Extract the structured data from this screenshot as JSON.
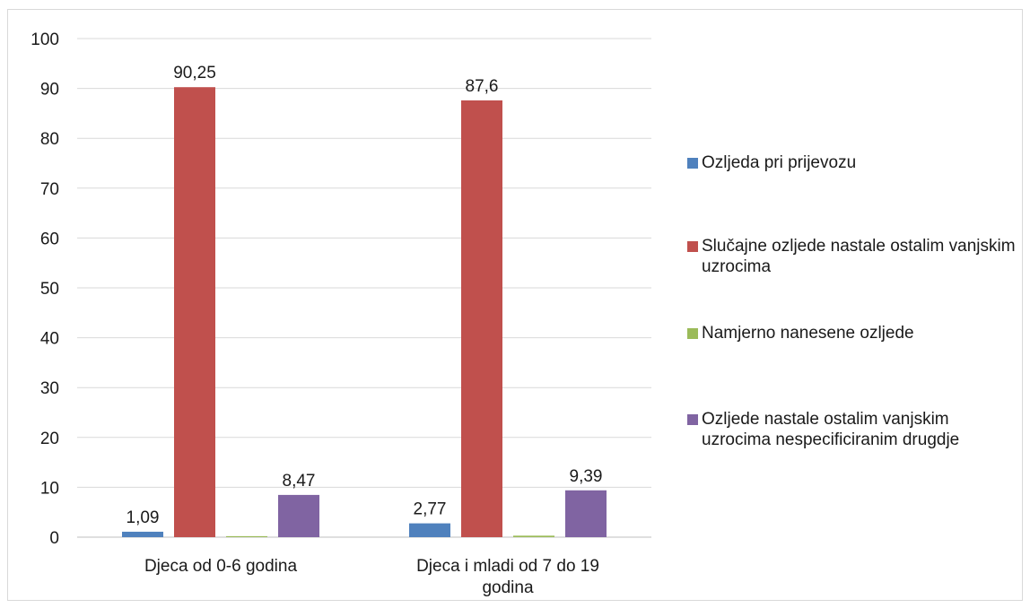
{
  "chart_data": {
    "type": "bar",
    "categories": [
      "Djeca od 0-6 godina",
      "Djeca i mladi od 7 do 19 godina"
    ],
    "series": [
      {
        "name": "Ozljeda pri prijevozu",
        "color": "#4f81bd",
        "values": [
          1.09,
          2.77
        ],
        "labels": [
          "1,09",
          "2,77"
        ]
      },
      {
        "name": "Slučajne ozljede nastale ostalim vanjskim uzrocima",
        "color": "#c0504d",
        "values": [
          90.25,
          87.6
        ],
        "labels": [
          "90,25",
          "87,6"
        ]
      },
      {
        "name": "Namjerno nanesene ozljede",
        "color": "#9bbb59",
        "values": [
          0.2,
          0.3
        ],
        "labels": [
          "",
          ""
        ]
      },
      {
        "name": "Ozljede nastale ostalim vanjskim uzrocima nespecificiranim drugdje",
        "color": "#8064a2",
        "values": [
          8.47,
          9.39
        ],
        "labels": [
          "8,47",
          "9,39"
        ]
      }
    ],
    "ylim": [
      0,
      100
    ],
    "yticks": [
      "0",
      "10",
      "20",
      "30",
      "40",
      "50",
      "60",
      "70",
      "80",
      "90",
      "100"
    ],
    "grid": true,
    "legend_position": "right"
  }
}
